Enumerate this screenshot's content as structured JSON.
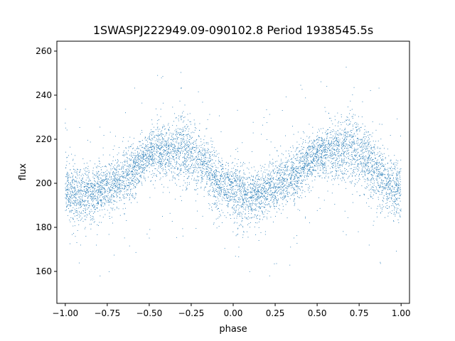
{
  "chart_data": {
    "type": "scatter",
    "title": "1SWASPJ222949.09-090102.8 Period 1938545.5s",
    "xlabel": "phase",
    "ylabel": "flux",
    "xlim": [
      -1.05,
      1.05
    ],
    "ylim": [
      145.5,
      264.5
    ],
    "xticks": [
      -1.0,
      -0.75,
      -0.5,
      -0.25,
      0.0,
      0.25,
      0.5,
      0.75,
      1.0
    ],
    "xtick_labels": [
      "−1.00",
      "−0.75",
      "−0.50",
      "−0.25",
      "0.00",
      "0.25",
      "0.50",
      "0.75",
      "1.00"
    ],
    "yticks": [
      160,
      180,
      200,
      220,
      240,
      260
    ],
    "ytick_labels": [
      "160",
      "180",
      "200",
      "220",
      "240",
      "260"
    ],
    "grid": false,
    "marker_color": "#1f77b4",
    "series": [
      {
        "profile_phase": [
          0.0,
          0.05,
          0.1,
          0.15,
          0.2,
          0.25,
          0.3,
          0.35,
          0.4,
          0.45,
          0.5,
          0.55,
          0.6,
          0.65,
          0.7,
          0.75,
          0.8,
          0.85,
          0.9,
          0.95,
          1.0
        ],
        "profile_flux": [
          198,
          195,
          194,
          195,
          197,
          198,
          201,
          203,
          206,
          210,
          213,
          214,
          214,
          215,
          216,
          214,
          210,
          206,
          201,
          198,
          198
        ],
        "profile_scatter": [
          6,
          7,
          6,
          6,
          6,
          6,
          6,
          6,
          6,
          6,
          5,
          6,
          6,
          7,
          8,
          8,
          7,
          7,
          7,
          6,
          6
        ],
        "point_count": 7000,
        "flux_range": [
          151,
          258
        ]
      }
    ]
  }
}
